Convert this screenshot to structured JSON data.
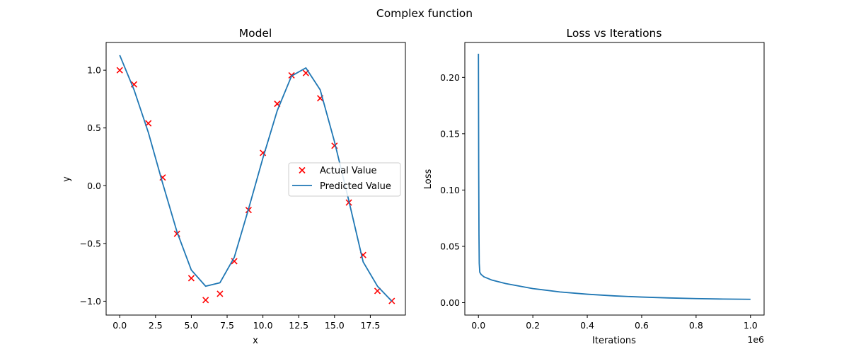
{
  "figure": {
    "suptitle": "Complex function"
  },
  "chart_data": [
    {
      "type": "scatter",
      "title": "Model",
      "xlabel": "x",
      "ylabel": "y",
      "xlim": [
        -0.95,
        19.95
      ],
      "ylim": [
        -1.12,
        1.24
      ],
      "xticks": [
        0.0,
        2.5,
        5.0,
        7.5,
        10.0,
        12.5,
        15.0,
        17.5
      ],
      "xtick_labels": [
        "0.0",
        "2.5",
        "5.0",
        "7.5",
        "10.0",
        "12.5",
        "15.0",
        "17.5"
      ],
      "yticks": [
        -1.0,
        -0.5,
        0.0,
        0.5,
        1.0
      ],
      "ytick_labels": [
        "−1.0",
        "−0.5",
        "0.0",
        "0.5",
        "1.0"
      ],
      "legend_position": "center-right",
      "series": [
        {
          "name": "Actual Value",
          "kind": "scatter",
          "marker": "x",
          "color": "#ff0000",
          "x": [
            0,
            1,
            2,
            3,
            4,
            5,
            6,
            7,
            8,
            9,
            10,
            11,
            12,
            13,
            14,
            15,
            16,
            17,
            18,
            19
          ],
          "y": [
            1.0,
            0.877,
            0.54,
            0.071,
            -0.416,
            -0.801,
            -0.99,
            -0.936,
            -0.654,
            -0.211,
            0.284,
            0.709,
            0.955,
            0.975,
            0.757,
            0.346,
            -0.146,
            -0.6,
            -0.911,
            -0.998
          ]
        },
        {
          "name": "Predicted Value",
          "kind": "line",
          "color": "#1f77b4",
          "x": [
            0,
            1,
            2,
            3,
            4,
            5,
            6,
            7,
            8,
            9,
            10,
            11,
            12,
            13,
            14,
            15,
            16,
            17,
            18,
            19
          ],
          "y": [
            1.13,
            0.83,
            0.46,
            0.02,
            -0.4,
            -0.73,
            -0.87,
            -0.84,
            -0.62,
            -0.2,
            0.24,
            0.65,
            0.95,
            1.02,
            0.83,
            0.38,
            -0.13,
            -0.66,
            -0.87,
            -1.0
          ]
        }
      ]
    },
    {
      "type": "line",
      "title": "Loss vs Iterations",
      "xlabel": "Iterations",
      "ylabel": "Loss",
      "x_scale_label": "1e6",
      "xlim": [
        -0.05,
        1.05
      ],
      "ylim": [
        -0.011,
        0.231
      ],
      "xticks": [
        0.0,
        0.2,
        0.4,
        0.6,
        0.8,
        1.0
      ],
      "xtick_labels": [
        "0.0",
        "0.2",
        "0.4",
        "0.6",
        "0.8",
        "1.0"
      ],
      "yticks": [
        0.0,
        0.05,
        0.1,
        0.15,
        0.2
      ],
      "ytick_labels": [
        "0.00",
        "0.05",
        "0.10",
        "0.15",
        "0.20"
      ],
      "series": [
        {
          "color": "#1f77b4",
          "x": [
            0.0,
            0.001,
            0.002,
            0.003,
            0.005,
            0.01,
            0.02,
            0.05,
            0.1,
            0.2,
            0.3,
            0.4,
            0.5,
            0.6,
            0.7,
            0.8,
            0.9,
            1.0
          ],
          "y": [
            0.221,
            0.12,
            0.06,
            0.035,
            0.027,
            0.025,
            0.023,
            0.02,
            0.017,
            0.0125,
            0.0095,
            0.0075,
            0.006,
            0.005,
            0.0042,
            0.0036,
            0.0032,
            0.003
          ]
        }
      ]
    }
  ]
}
